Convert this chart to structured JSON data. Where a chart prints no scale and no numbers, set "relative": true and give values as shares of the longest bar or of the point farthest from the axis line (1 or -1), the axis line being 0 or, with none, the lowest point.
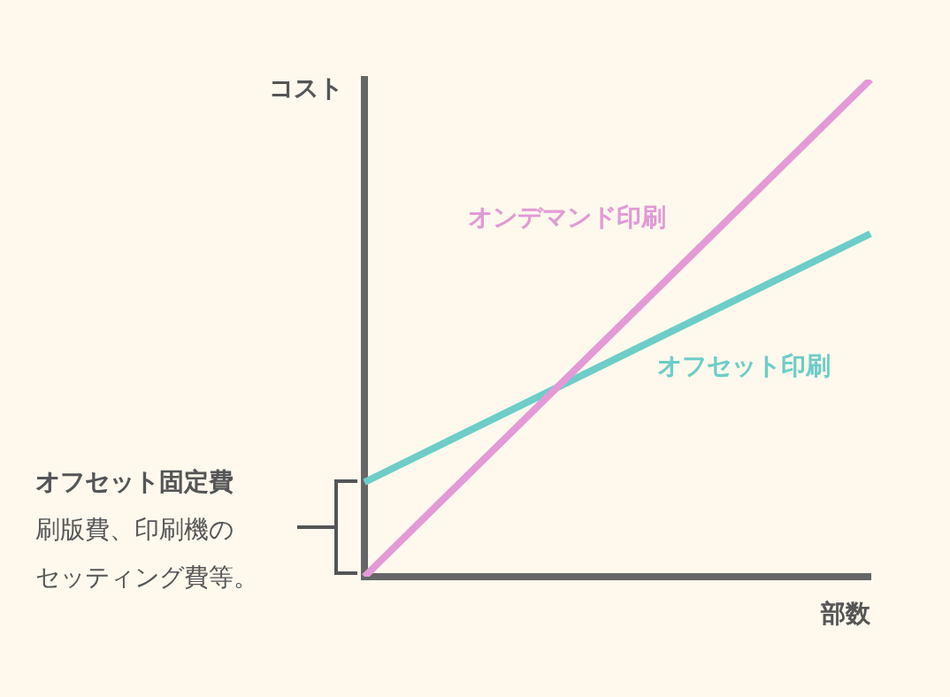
{
  "chart_data": {
    "type": "line",
    "relative": true,
    "xlabel": "部数",
    "ylabel": "コスト",
    "categories": [
      null,
      null
    ],
    "series": [
      {
        "name": "オンデマンド印刷",
        "color": "#e39ad6",
        "values": [
          0,
          1
        ]
      },
      {
        "name": "オフセット印刷",
        "color": "#6dcdc8",
        "values": [
          0.19,
          0.69
        ]
      }
    ],
    "annotations": [
      "オフセット固定費",
      "刷版費、印刷機の",
      "セッティング費等。"
    ],
    "grid": false,
    "legend": false,
    "marker": "none",
    "line_style": "solid"
  }
}
